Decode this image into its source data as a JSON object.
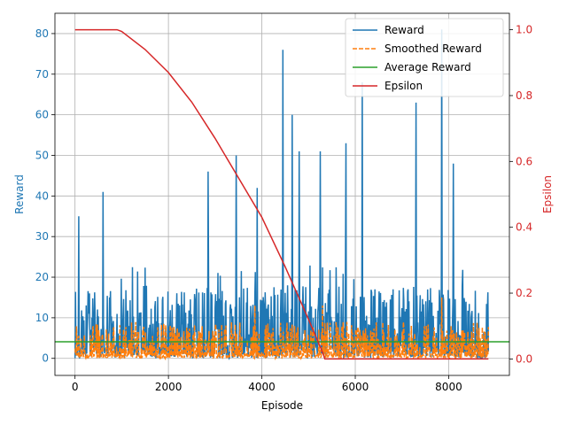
{
  "chart_data": {
    "type": "line",
    "xlabel": "Episode",
    "ylabel": "Reward",
    "y2label": "Epsilon",
    "xlim": [
      -430,
      9300
    ],
    "ylim": [
      -4.2,
      85
    ],
    "y2lim": [
      -0.05,
      1.05
    ],
    "x_ticks": [
      0,
      2000,
      4000,
      6000,
      8000
    ],
    "y_ticks": [
      0,
      10,
      20,
      30,
      40,
      50,
      60,
      70,
      80
    ],
    "y2_ticks": [
      0.0,
      0.2,
      0.4,
      0.6,
      0.8,
      1.0
    ],
    "x_tick_labels": [
      "0",
      "2000",
      "4000",
      "6000",
      "8000"
    ],
    "y_tick_labels": [
      "0",
      "10",
      "20",
      "30",
      "40",
      "50",
      "60",
      "70",
      "80"
    ],
    "y2_tick_labels": [
      "0.0",
      "0.2",
      "0.4",
      "0.6",
      "0.8",
      "1.0"
    ],
    "grid": true,
    "legend_position": "top-right",
    "n_episodes": 8850,
    "series": [
      {
        "name": "Reward",
        "axis": "left",
        "color": "#1f77b4",
        "style": "solid",
        "typical_range": [
          0,
          18
        ],
        "peaks": [
          {
            "x": 80,
            "y": 35
          },
          {
            "x": 600,
            "y": 41
          },
          {
            "x": 2850,
            "y": 46
          },
          {
            "x": 3450,
            "y": 50
          },
          {
            "x": 3900,
            "y": 42
          },
          {
            "x": 4450,
            "y": 76
          },
          {
            "x": 4650,
            "y": 60
          },
          {
            "x": 4800,
            "y": 51
          },
          {
            "x": 5250,
            "y": 51
          },
          {
            "x": 5800,
            "y": 53
          },
          {
            "x": 6150,
            "y": 68
          },
          {
            "x": 7300,
            "y": 63
          },
          {
            "x": 7850,
            "y": 81
          },
          {
            "x": 8100,
            "y": 48
          }
        ]
      },
      {
        "name": "Smoothed Reward",
        "axis": "left",
        "color": "#ff7f0e",
        "style": "dashed",
        "typical_range": [
          0,
          9
        ],
        "peaks": [
          {
            "x": 3850,
            "y": 13
          },
          {
            "x": 5300,
            "y": 13
          },
          {
            "x": 7850,
            "y": 15
          }
        ]
      },
      {
        "name": "Average Reward",
        "axis": "left",
        "color": "#2ca02c",
        "style": "solid",
        "x": [
          -430,
          9300
        ],
        "values": [
          4.1,
          4.1
        ]
      },
      {
        "name": "Epsilon",
        "axis": "right",
        "color": "#d62728",
        "style": "solid",
        "x": [
          0,
          900,
          1000,
          1500,
          2000,
          2500,
          3000,
          3500,
          4000,
          4500,
          5000,
          5300,
          5350,
          8850
        ],
        "values": [
          1.0,
          1.0,
          0.995,
          0.94,
          0.87,
          0.78,
          0.67,
          0.55,
          0.43,
          0.28,
          0.12,
          0.02,
          0.0,
          0.0
        ]
      }
    ]
  }
}
